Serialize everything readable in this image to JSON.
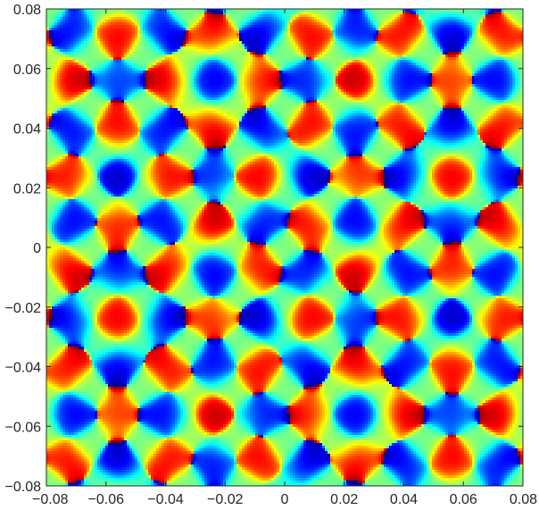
{
  "chart_data": {
    "type": "heatmap",
    "title": "",
    "xlabel": "",
    "ylabel": "",
    "xlim": [
      -0.08,
      0.08
    ],
    "ylim": [
      -0.08,
      0.08
    ],
    "x_ticks": [
      -0.08,
      -0.06,
      -0.04,
      -0.02,
      0,
      0.02,
      0.04,
      0.06,
      0.08
    ],
    "y_ticks": [
      -0.08,
      -0.06,
      -0.04,
      -0.02,
      0,
      0.02,
      0.04,
      0.06,
      0.08
    ],
    "x_tick_labels": [
      "−0.08",
      "−0.06",
      "−0.04",
      "−0.02",
      "0",
      "0.02",
      "0.04",
      "0.06",
      "0.08"
    ],
    "y_tick_labels": [
      "−0.08",
      "−0.06",
      "−0.04",
      "−0.02",
      "0",
      "0.02",
      "0.04",
      "0.06",
      "0.08"
    ],
    "colormap": "jet",
    "value_range": [
      -3.14159,
      3.14159
    ],
    "symmetry": "8-fold (square lattice, mirror about both axes and diagonals)",
    "grid": false,
    "legend": "none"
  }
}
